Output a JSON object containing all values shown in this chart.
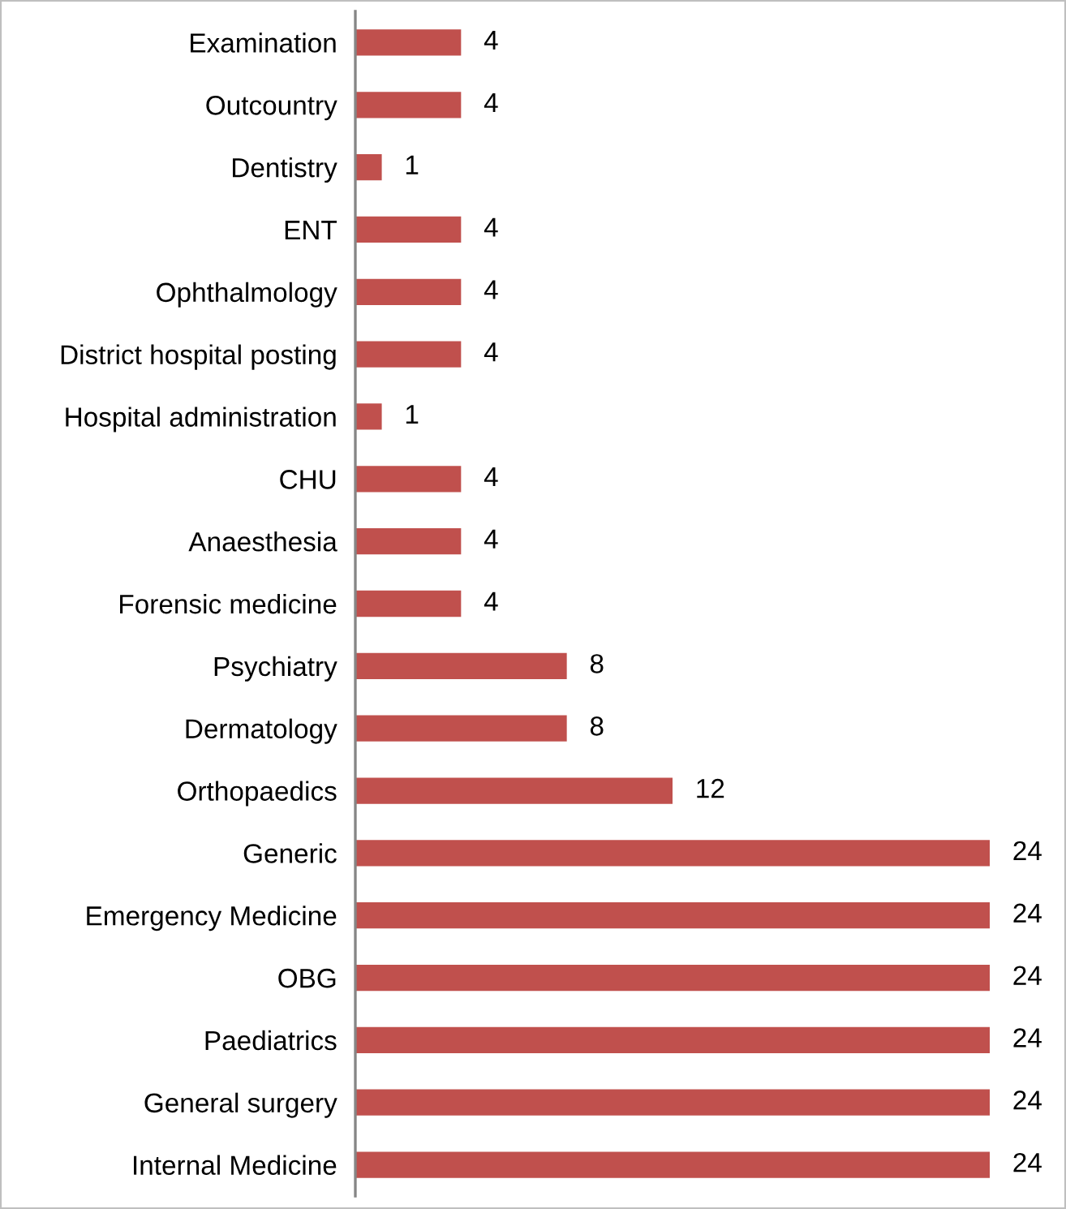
{
  "chart_data": {
    "type": "bar",
    "orientation": "horizontal",
    "categories": [
      "Examination",
      "Outcountry",
      "Dentistry",
      "ENT",
      "Ophthalmology",
      "District hospital posting",
      "Hospital administration",
      "CHU",
      "Anaesthesia",
      "Forensic medicine",
      "Psychiatry",
      "Dermatology",
      "Orthopaedics",
      "Generic",
      "Emergency Medicine",
      "OBG",
      "Paediatrics",
      "General surgery",
      "Internal Medicine"
    ],
    "values": [
      4,
      4,
      1,
      4,
      4,
      4,
      1,
      4,
      4,
      4,
      8,
      8,
      12,
      24,
      24,
      24,
      24,
      24,
      24
    ],
    "color": "#c0504d",
    "data_labels": true,
    "grid": false,
    "legend": false,
    "tick_labels": "y"
  }
}
